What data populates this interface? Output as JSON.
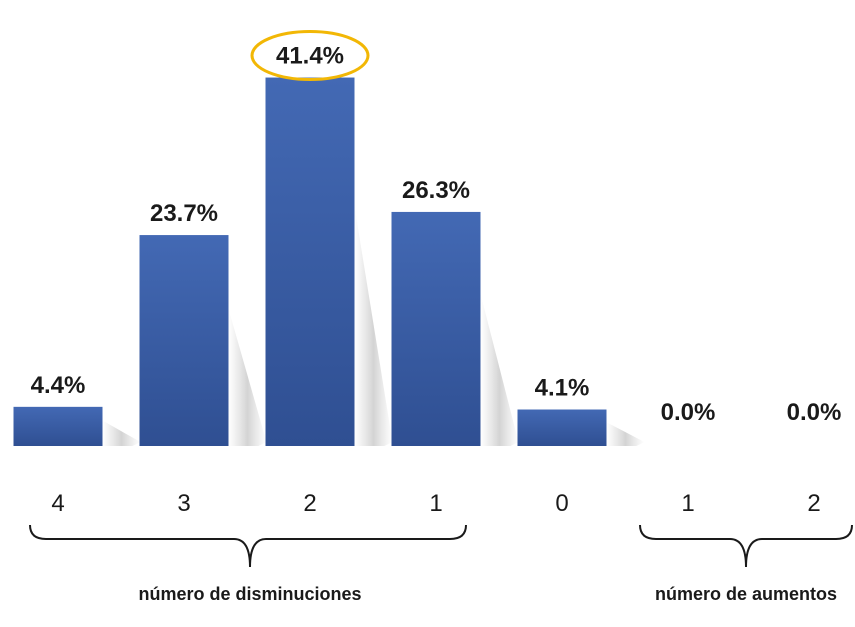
{
  "chart_data": {
    "type": "bar",
    "categories": [
      "4",
      "3",
      "2",
      "1",
      "0",
      "1",
      "2"
    ],
    "values": [
      4.4,
      23.7,
      41.4,
      26.3,
      4.1,
      0.0,
      0.0
    ],
    "value_labels": [
      "4.4%",
      "23.7%",
      "41.4%",
      "26.3%",
      "4.1%",
      "0.0%",
      "0.0%"
    ],
    "highlighted_index": 2,
    "highlight_color": "#F2B705",
    "bar_color": "#3A5FA8",
    "groups": [
      {
        "label": "número de disminuciones",
        "categories": [
          "4",
          "3",
          "2",
          "1"
        ]
      },
      {
        "label": "número de aumentos",
        "categories": [
          "1",
          "2"
        ]
      }
    ],
    "grid": false,
    "legend": "none"
  }
}
